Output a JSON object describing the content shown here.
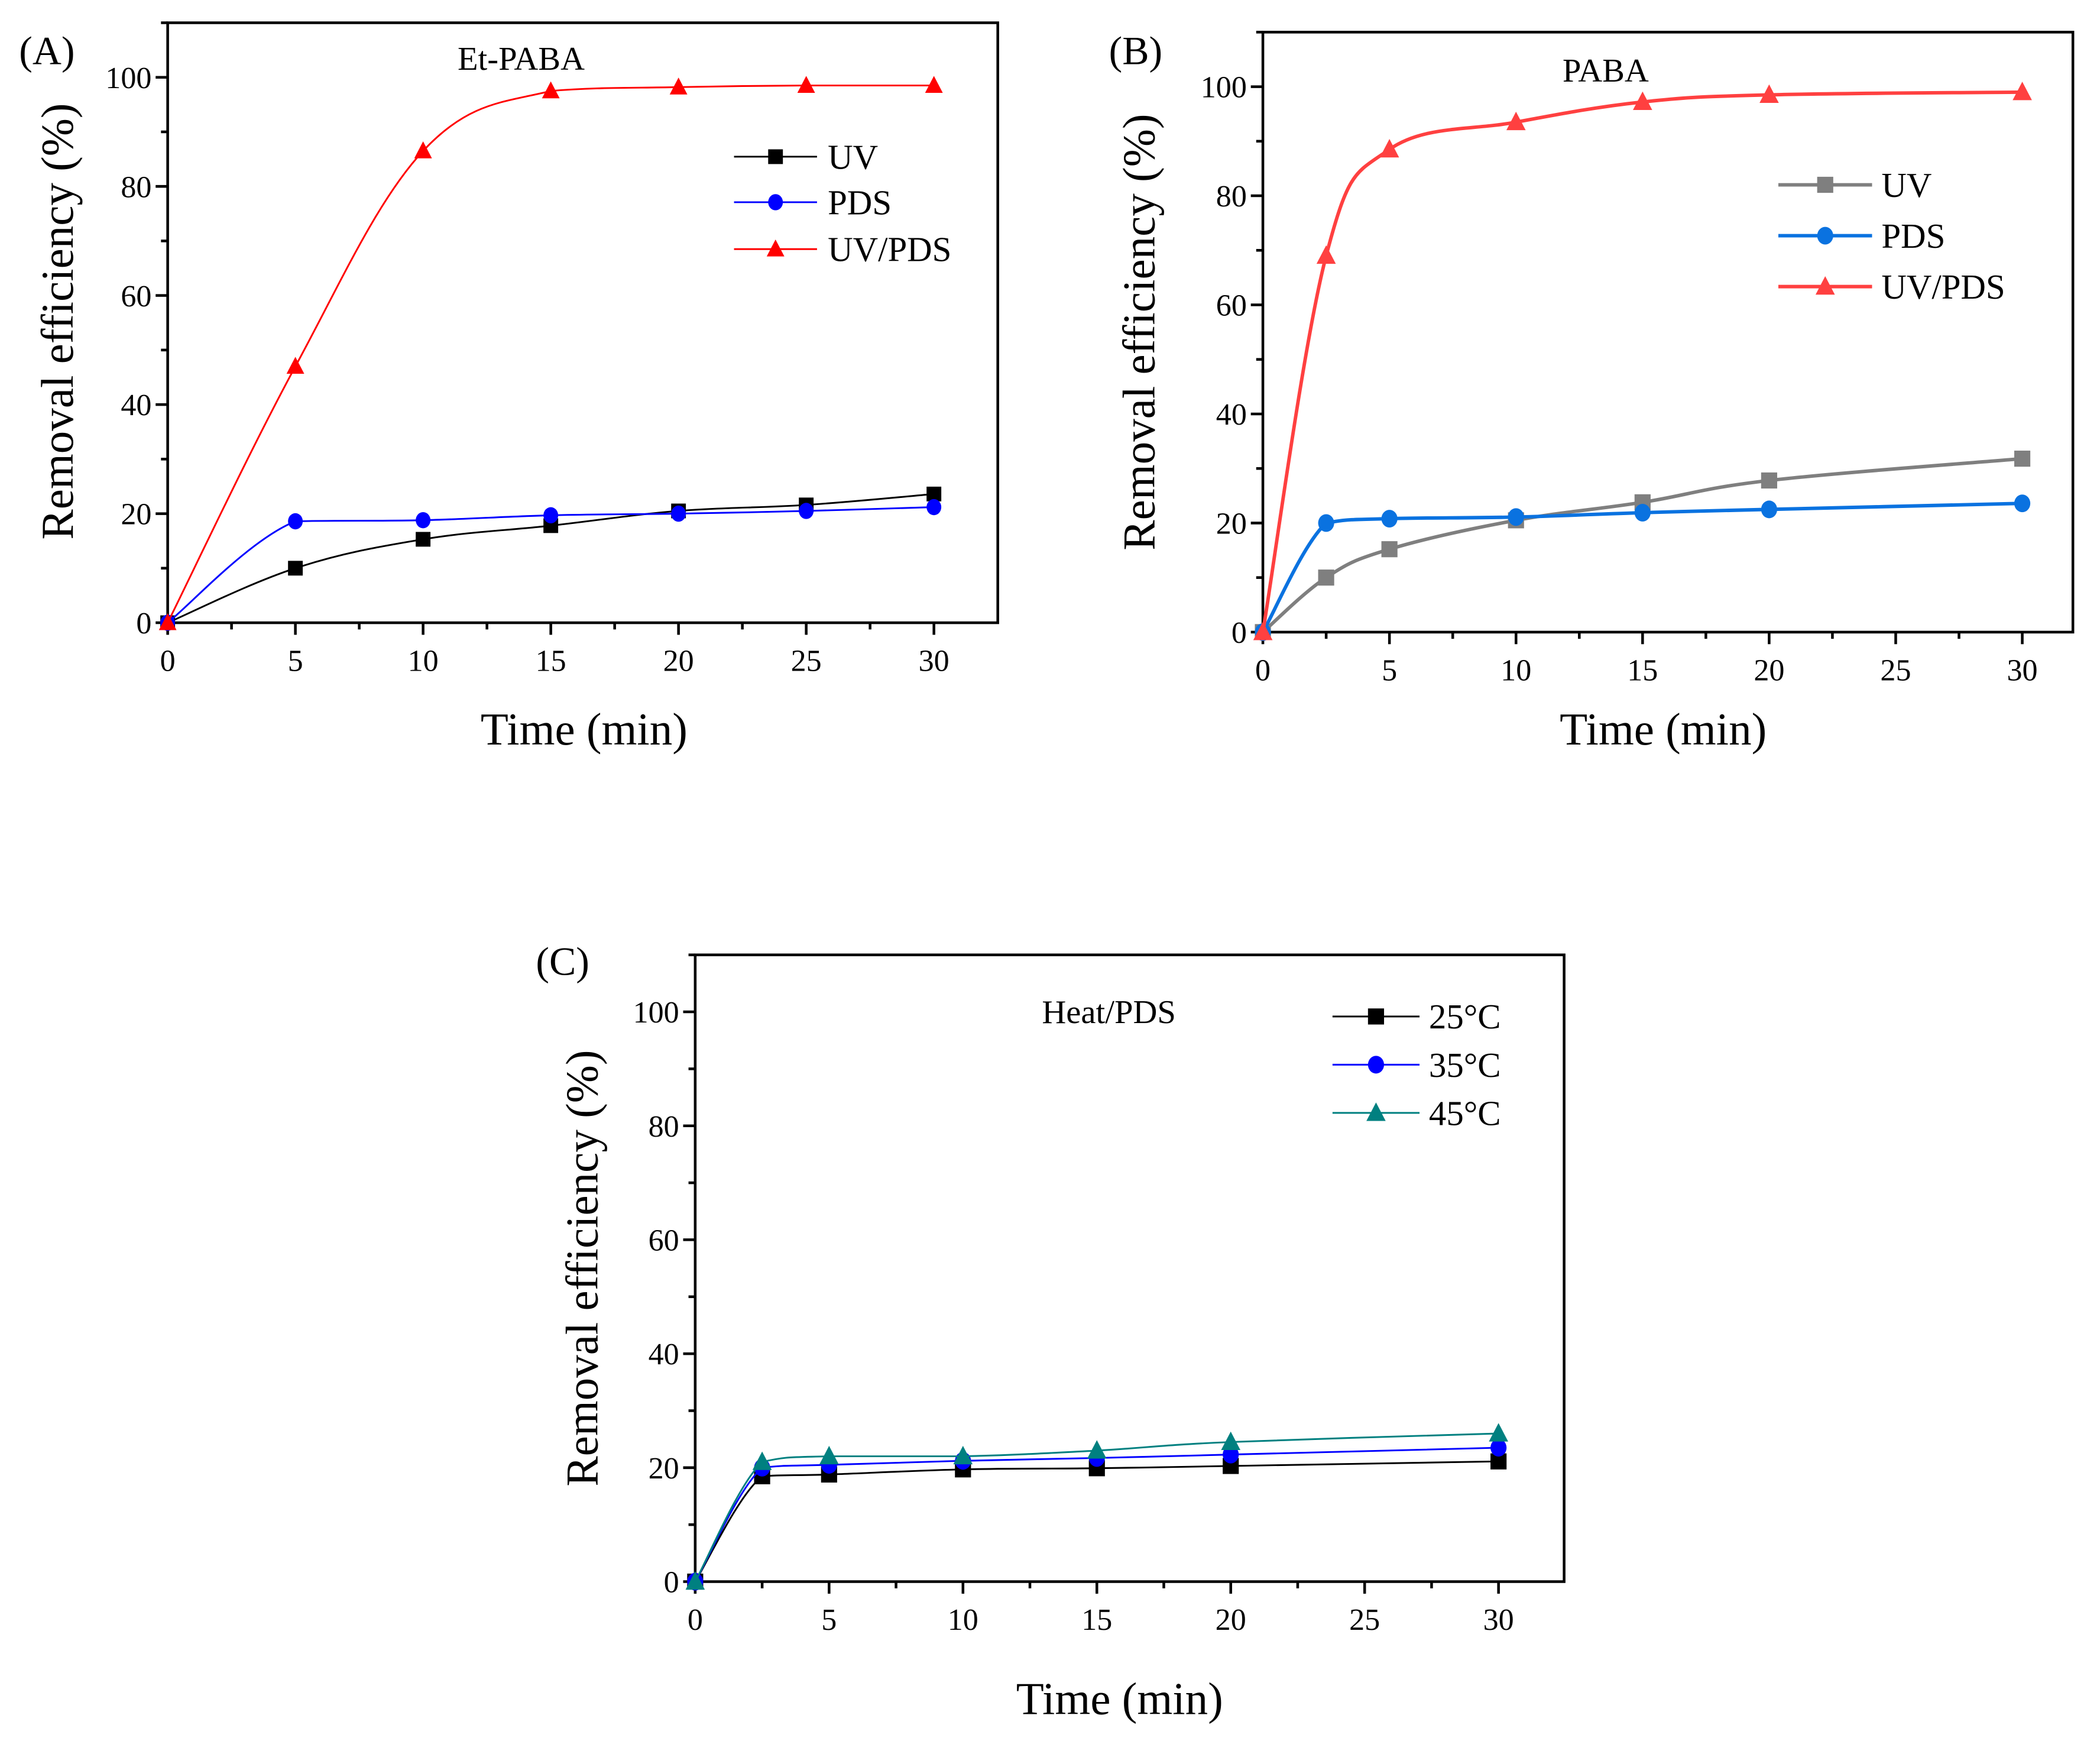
{
  "chart_data": [
    {
      "panel": "(A)",
      "type": "line",
      "title": "Et-PABA",
      "xlabel": "Time (min)",
      "ylabel": "Removal efficiency (%)",
      "xlim": [
        0,
        32.5
      ],
      "ylim": [
        0,
        110
      ],
      "xticks": [
        0,
        5,
        10,
        15,
        20,
        25,
        30
      ],
      "yticks": [
        0,
        20,
        40,
        60,
        80,
        100
      ],
      "legend_position": "right",
      "grid": false,
      "x": [
        0,
        5,
        10,
        15,
        20,
        25,
        30
      ],
      "series": [
        {
          "name": "UV",
          "marker": "square",
          "color": "#000000",
          "values": [
            0,
            10.0,
            15.3,
            17.8,
            20.5,
            21.6,
            23.6
          ]
        },
        {
          "name": "PDS",
          "marker": "circle",
          "color": "#0000ff",
          "values": [
            0,
            18.6,
            18.8,
            19.7,
            20.0,
            20.5,
            21.2
          ]
        },
        {
          "name": "UV/PDS",
          "marker": "triangle",
          "color": "#ff0000",
          "values": [
            0,
            47.0,
            86.5,
            97.5,
            98.2,
            98.5,
            98.5
          ]
        }
      ]
    },
    {
      "panel": "(B)",
      "type": "line",
      "title": "PABA",
      "xlabel": "Time (min)",
      "ylabel": "Removal efficiency (%)",
      "xlim": [
        0,
        32
      ],
      "ylim": [
        0,
        110
      ],
      "xticks": [
        0,
        5,
        10,
        15,
        20,
        25,
        30
      ],
      "yticks": [
        0,
        20,
        40,
        60,
        80,
        100
      ],
      "legend_position": "right",
      "grid": false,
      "x": [
        0,
        2.5,
        5,
        10,
        15,
        20,
        30
      ],
      "series": [
        {
          "name": "UV",
          "marker": "square",
          "color": "#7f7f7f",
          "values": [
            0,
            10.0,
            15.2,
            20.5,
            23.8,
            27.8,
            31.8
          ]
        },
        {
          "name": "PDS",
          "marker": "circle",
          "color": "#0a72e0",
          "values": [
            0,
            20.0,
            20.8,
            21.1,
            21.9,
            22.5,
            23.6
          ]
        },
        {
          "name": "UV/PDS",
          "marker": "triangle",
          "color": "#ff4040",
          "values": [
            0,
            69.0,
            88.5,
            93.5,
            97.2,
            98.5,
            99.0
          ]
        }
      ]
    },
    {
      "panel": "(C)",
      "type": "line",
      "title": "Heat/PDS",
      "xlabel": "Time (min)",
      "ylabel": "Removal efficiency (%)",
      "xlim": [
        0,
        32.45
      ],
      "ylim": [
        0,
        110
      ],
      "xticks": [
        0,
        5,
        10,
        15,
        20,
        25,
        30
      ],
      "yticks": [
        0,
        20,
        40,
        60,
        80,
        100
      ],
      "legend_position": "top-right",
      "grid": false,
      "x": [
        0,
        2.5,
        5,
        10,
        15,
        20,
        30
      ],
      "series": [
        {
          "name": "25°C",
          "marker": "square",
          "color": "#000000",
          "values": [
            0,
            18.5,
            18.8,
            19.7,
            19.9,
            20.3,
            21.1
          ]
        },
        {
          "name": "35°C",
          "marker": "circle",
          "color": "#0000ff",
          "values": [
            0,
            20.0,
            20.5,
            21.2,
            21.7,
            22.3,
            23.5
          ]
        },
        {
          "name": "45°C",
          "marker": "triangle",
          "color": "#008080",
          "values": [
            0,
            21.0,
            22.0,
            22.0,
            23.0,
            24.5,
            26.0
          ]
        }
      ]
    }
  ]
}
